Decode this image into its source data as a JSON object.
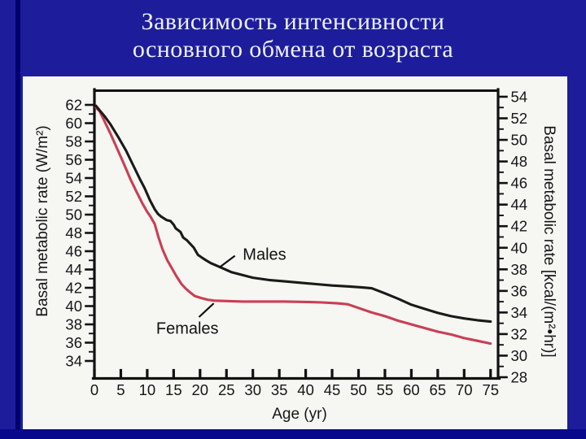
{
  "slide": {
    "title_line1": "Зависимость интенсивности",
    "title_line2": "основного обмена от возраста"
  },
  "colors": {
    "slide_background": "#1d1d9c",
    "title_text": "#eef0fa",
    "panel_background": "#f6f6f3",
    "males_curve": "#1a1a1a",
    "females_curve": "#c93f54",
    "axis": "#111111"
  },
  "chart_data": {
    "type": "line",
    "x_axis": {
      "label": "Age (yr)",
      "min": 0,
      "max": 76.4,
      "ticks": [
        0,
        5,
        10,
        15,
        20,
        25,
        30,
        35,
        40,
        45,
        50,
        55,
        60,
        65,
        70,
        75
      ]
    },
    "left_axis": {
      "label": "Basal metabolic rate (W/m²)",
      "units": "W/m²",
      "min": 34,
      "max": 62,
      "tick_step": 2,
      "minor_step": 1,
      "ticks": [
        62,
        60,
        58,
        56,
        54,
        52,
        50,
        48,
        46,
        44,
        42,
        40,
        38,
        36,
        34
      ]
    },
    "right_axis": {
      "label": "Basal metabolic rate [kcal/(m²•hr)]",
      "units": "kcal/(m²·hr)",
      "min": 28,
      "max": 54,
      "tick_step": 2,
      "minor_step": 1,
      "ticks": [
        54,
        52,
        50,
        48,
        46,
        44,
        42,
        40,
        38,
        36,
        34,
        32,
        30,
        28
      ]
    },
    "series": [
      {
        "name": "Females",
        "color": "#c93f54",
        "points": [
          [
            0.3,
            61.7
          ],
          [
            1,
            61.3
          ],
          [
            2,
            60.1
          ],
          [
            3,
            58.9
          ],
          [
            4,
            57.6
          ],
          [
            5,
            56.3
          ],
          [
            6,
            55.0
          ],
          [
            6.8,
            53.9
          ],
          [
            7.8,
            52.7
          ],
          [
            9.1,
            51.2
          ],
          [
            10,
            50.3
          ],
          [
            10.6,
            49.8
          ],
          [
            11.4,
            49.0
          ],
          [
            12.2,
            47.4
          ],
          [
            12.9,
            46.2
          ],
          [
            13.8,
            45.0
          ],
          [
            14.7,
            44.1
          ],
          [
            15.6,
            43.2
          ],
          [
            16.5,
            42.4
          ],
          [
            17.3,
            41.9
          ],
          [
            18.1,
            41.5
          ],
          [
            19,
            41.1
          ],
          [
            20.1,
            40.9
          ],
          [
            21.4,
            40.7
          ],
          [
            22.7,
            40.6
          ],
          [
            25,
            40.55
          ],
          [
            28,
            40.5
          ],
          [
            32,
            40.5
          ],
          [
            36,
            40.5
          ],
          [
            40,
            40.45
          ],
          [
            43,
            40.4
          ],
          [
            46,
            40.3
          ],
          [
            48,
            40.2
          ],
          [
            50,
            39.8
          ],
          [
            52.5,
            39.3
          ],
          [
            55,
            38.9
          ],
          [
            57.5,
            38.4
          ],
          [
            60,
            38.0
          ],
          [
            62.5,
            37.6
          ],
          [
            65,
            37.2
          ],
          [
            67.5,
            36.9
          ],
          [
            70,
            36.5
          ],
          [
            72.5,
            36.2
          ],
          [
            75,
            35.9
          ]
        ]
      },
      {
        "name": "Males",
        "color": "#1a1a1a",
        "points": [
          [
            0.3,
            61.9
          ],
          [
            1,
            61.4
          ],
          [
            2,
            60.7
          ],
          [
            3,
            59.9
          ],
          [
            4.5,
            58.5
          ],
          [
            6,
            57.0
          ],
          [
            7.5,
            55.2
          ],
          [
            8.6,
            53.9
          ],
          [
            9.5,
            52.9
          ],
          [
            10.5,
            51.6
          ],
          [
            11.4,
            50.6
          ],
          [
            12,
            50.1
          ],
          [
            12.6,
            49.8
          ],
          [
            13.7,
            49.4
          ],
          [
            14.4,
            49.3
          ],
          [
            15,
            48.9
          ],
          [
            15.4,
            48.5
          ],
          [
            16.3,
            48.1
          ],
          [
            16.8,
            47.5
          ],
          [
            17.5,
            47.2
          ],
          [
            18,
            46.9
          ],
          [
            18.8,
            46.4
          ],
          [
            19.6,
            45.6
          ],
          [
            20.6,
            45.2
          ],
          [
            22,
            44.7
          ],
          [
            24,
            44.2
          ],
          [
            26,
            43.7
          ],
          [
            28,
            43.4
          ],
          [
            30,
            43.1
          ],
          [
            33,
            42.85
          ],
          [
            36,
            42.7
          ],
          [
            39,
            42.55
          ],
          [
            42,
            42.4
          ],
          [
            45,
            42.25
          ],
          [
            48,
            42.15
          ],
          [
            50.5,
            42.05
          ],
          [
            52.5,
            41.95
          ],
          [
            55,
            41.4
          ],
          [
            57.5,
            40.8
          ],
          [
            60,
            40.15
          ],
          [
            62.5,
            39.7
          ],
          [
            65,
            39.25
          ],
          [
            67.5,
            38.9
          ],
          [
            70,
            38.65
          ],
          [
            72.5,
            38.45
          ],
          [
            75,
            38.3
          ]
        ]
      }
    ],
    "annotations": [
      {
        "text": "Males",
        "x": 32.2,
        "y": 45.7,
        "leader": [
          [
            26.6,
            45.5
          ],
          [
            23.6,
            44.2
          ]
        ]
      },
      {
        "text": "Females",
        "x": 17.6,
        "y": 37.6,
        "leader": [
          [
            19.8,
            38.8
          ],
          [
            22.6,
            40.3
          ]
        ]
      }
    ],
    "legend_position": "inline-labels",
    "grid": false
  }
}
